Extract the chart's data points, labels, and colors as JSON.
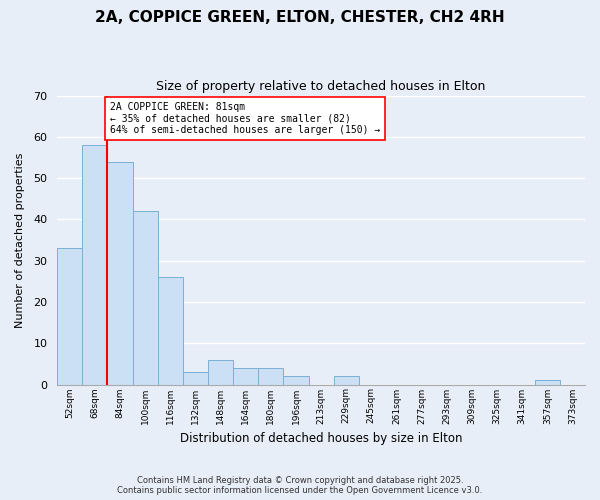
{
  "title": "2A, COPPICE GREEN, ELTON, CHESTER, CH2 4RH",
  "subtitle": "Size of property relative to detached houses in Elton",
  "xlabel": "Distribution of detached houses by size in Elton",
  "ylabel": "Number of detached properties",
  "bar_labels": [
    "52sqm",
    "68sqm",
    "84sqm",
    "100sqm",
    "116sqm",
    "132sqm",
    "148sqm",
    "164sqm",
    "180sqm",
    "196sqm",
    "213sqm",
    "229sqm",
    "245sqm",
    "261sqm",
    "277sqm",
    "293sqm",
    "309sqm",
    "325sqm",
    "341sqm",
    "357sqm",
    "373sqm"
  ],
  "bar_values": [
    33,
    58,
    54,
    42,
    26,
    3,
    6,
    4,
    4,
    2,
    0,
    2,
    0,
    0,
    0,
    0,
    0,
    0,
    0,
    1,
    0
  ],
  "bar_color": "#cce0f5",
  "bar_edge_color": "#7bafd4",
  "annotation_title": "2A COPPICE GREEN: 81sqm",
  "annotation_line1": "← 35% of detached houses are smaller (82)",
  "annotation_line2": "64% of semi-detached houses are larger (150) →",
  "ylim": [
    0,
    70
  ],
  "yticks": [
    0,
    10,
    20,
    30,
    40,
    50,
    60,
    70
  ],
  "footer_line1": "Contains HM Land Registry data © Crown copyright and database right 2025.",
  "footer_line2": "Contains public sector information licensed under the Open Government Licence v3.0.",
  "background_color": "#e8eef8"
}
